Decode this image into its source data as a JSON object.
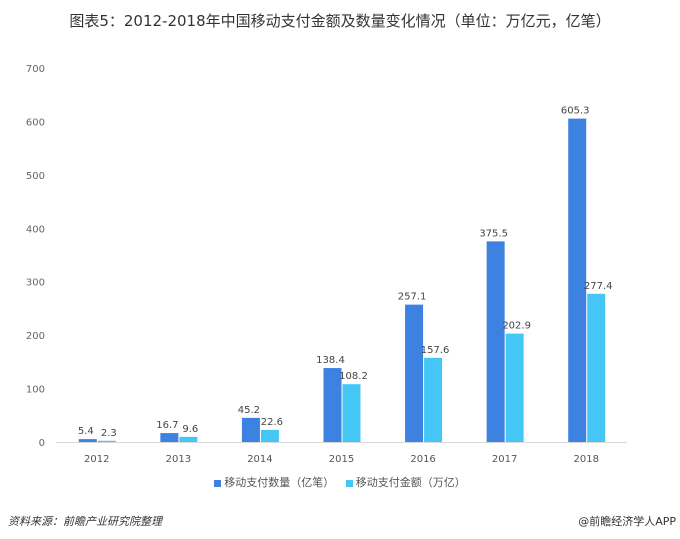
{
  "title": "图表5：2012-2018年中国移动支付金额及数量变化情况（单位：万亿元，亿笔）",
  "chart_data": {
    "type": "bar",
    "title": "图表5：2012-2018年中国移动支付金额及数量变化情况（单位：万亿元，亿笔）",
    "categories": [
      "2012",
      "2013",
      "2014",
      "2015",
      "2016",
      "2017",
      "2018"
    ],
    "series": [
      {
        "name": "移动支付数量（亿笔）",
        "color": "#3d82e0",
        "values": [
          5.4,
          16.7,
          45.2,
          138.4,
          257.1,
          375.5,
          605.3
        ]
      },
      {
        "name": "移动支付金额（万亿）",
        "color": "#44c7f6",
        "values": [
          2.3,
          9.6,
          22.6,
          108.2,
          157.6,
          202.9,
          277.4
        ]
      }
    ],
    "ylim": [
      0,
      700
    ],
    "yticks": [
      0,
      100,
      200,
      300,
      400,
      500,
      600,
      700
    ],
    "xlabel": "",
    "ylabel": "",
    "grid": false,
    "legend": "bottom"
  },
  "source": "资料来源：前瞻产业研究院整理",
  "credit": "@前瞻经济学人APP"
}
